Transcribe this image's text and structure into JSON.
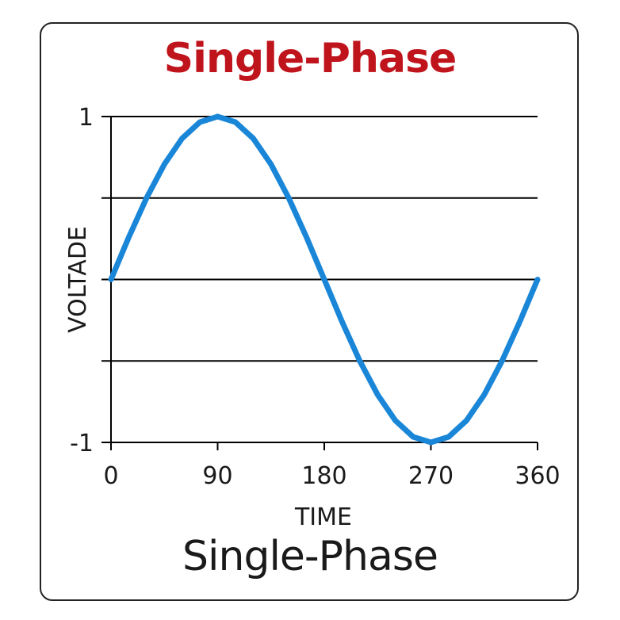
{
  "title": "Single-Phase",
  "footer": "Single-Phase",
  "colors": {
    "title": "#c0141c",
    "curve": "#1a86d8",
    "grid": "#000000"
  },
  "chart_data": {
    "type": "line",
    "title": "Single-Phase",
    "xlabel": "TIME",
    "ylabel": "VOLTADE",
    "xlim": [
      0,
      360
    ],
    "ylim": [
      -1,
      1
    ],
    "x_ticks": [
      0,
      90,
      180,
      270,
      360
    ],
    "x_tick_labels": [
      "0",
      "90",
      "180",
      "270",
      "360"
    ],
    "y_ticks": [
      1,
      0.5,
      0,
      -0.5,
      -1
    ],
    "y_tick_labels": [
      "1",
      "",
      "",
      "",
      "-1"
    ],
    "grid": "horizontal",
    "series": [
      {
        "x": [
          0,
          15,
          30,
          45,
          60,
          75,
          90,
          105,
          120,
          135,
          150,
          165,
          180,
          195,
          210,
          225,
          240,
          255,
          270,
          285,
          300,
          315,
          330,
          345,
          360
        ],
        "y": [
          0,
          0.259,
          0.5,
          0.707,
          0.866,
          0.966,
          1,
          0.966,
          0.866,
          0.707,
          0.5,
          0.259,
          0,
          -0.259,
          -0.5,
          -0.707,
          -0.866,
          -0.966,
          -1,
          -0.966,
          -0.866,
          -0.707,
          -0.5,
          -0.259,
          0
        ]
      }
    ]
  }
}
